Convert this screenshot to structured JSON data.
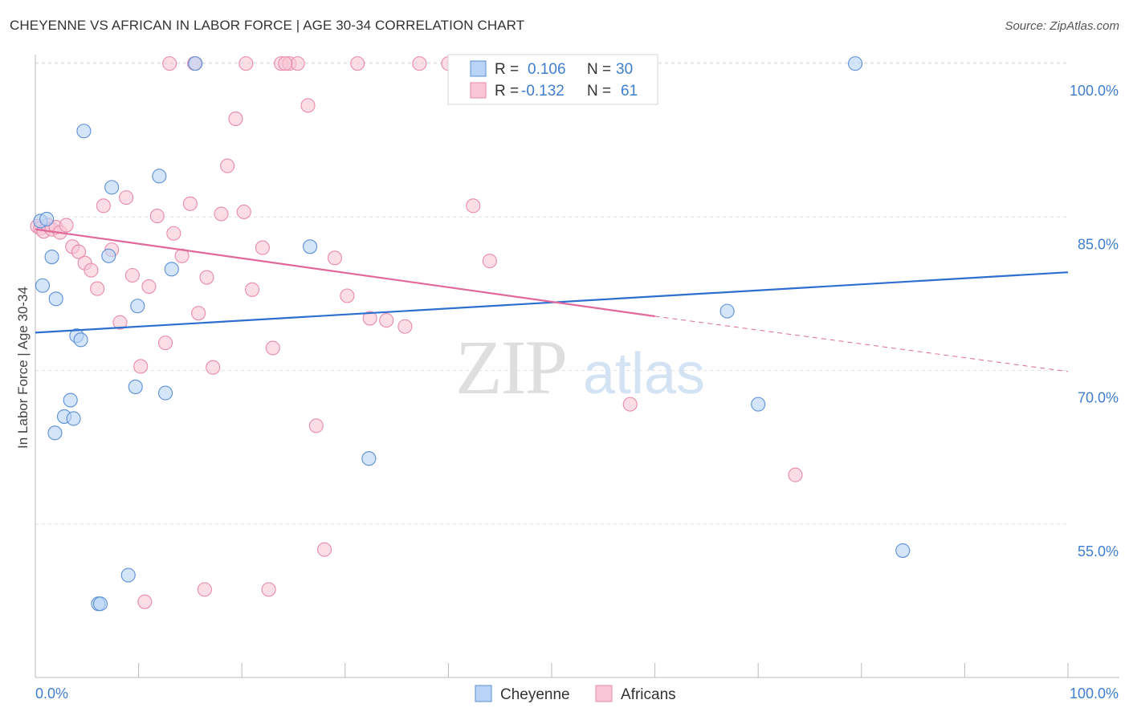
{
  "title": "CHEYENNE VS AFRICAN IN LABOR FORCE | AGE 30-34 CORRELATION CHART",
  "source": "Source: ZipAtlas.com",
  "colors": {
    "cheyenne_fill": "#b8d3f5",
    "cheyenne_stroke": "#5b8fd6",
    "cheyenne_line": "#2d6fcf",
    "africans_fill": "#f8c6d6",
    "africans_stroke": "#e88aaa",
    "africans_line": "#e0699a",
    "axis_label": "#3f7ecf",
    "grid": "#e3e3e3"
  },
  "watermark": {
    "zip": "ZIP",
    "atlas": "atlas"
  },
  "legend": {
    "rows": [
      {
        "r_label": "R =",
        "r_value": "0.106",
        "n_label": "N =",
        "n_value": "30",
        "series": "cheyenne"
      },
      {
        "r_label": "R =",
        "r_value": "-0.132",
        "n_label": "N =",
        "n_value": "61",
        "series": "africans"
      }
    ]
  },
  "bottom_legend": [
    "Cheyenne",
    "Africans"
  ],
  "chart_data": {
    "type": "scatter",
    "title": "CHEYENNE VS AFRICAN IN LABOR FORCE | AGE 30-34 CORRELATION CHART",
    "xlabel": "",
    "ylabel": "In Labor Force | Age 30-34",
    "xlim": [
      0,
      100
    ],
    "ylim": [
      40,
      101.5
    ],
    "x_tick_labels": [
      "0.0%",
      "100.0%"
    ],
    "y_ticks": [
      55,
      70,
      85,
      100
    ],
    "y_tick_labels": [
      "55.0%",
      "70.0%",
      "85.0%",
      "100.0%"
    ],
    "grid": true,
    "legend_position": "top-center",
    "series": [
      {
        "name": "Cheyenne",
        "x": [
          0.5,
          1.1,
          0.7,
          1.6,
          2.0,
          4.0,
          4.4,
          4.7,
          3.4,
          2.8,
          3.7,
          1.9,
          7.4,
          12.0,
          7.1,
          13.2,
          15.5,
          9.9,
          9.7,
          12.6,
          9.0,
          6.1,
          6.3,
          26.6,
          32.3,
          67.0,
          70.0,
          59.2,
          79.4,
          84.0
        ],
        "y": [
          84.6,
          84.8,
          78.3,
          81.1,
          77.0,
          73.4,
          73.0,
          93.4,
          67.1,
          65.5,
          65.3,
          63.9,
          87.9,
          89.0,
          81.2,
          79.9,
          100.0,
          76.3,
          68.4,
          67.8,
          50.0,
          47.2,
          47.2,
          82.1,
          61.4,
          75.8,
          66.7,
          100.0,
          100.0,
          52.4
        ]
      },
      {
        "name": "Africans",
        "x": [
          0.2,
          0.5,
          0.8,
          1.2,
          1.6,
          2.0,
          2.4,
          3.0,
          3.6,
          4.2,
          4.8,
          5.4,
          6.0,
          6.6,
          7.4,
          8.2,
          8.8,
          9.4,
          10.2,
          11.0,
          11.8,
          12.6,
          13.4,
          14.2,
          15.0,
          15.8,
          16.6,
          17.2,
          18.0,
          18.6,
          19.4,
          20.2,
          21.0,
          22.0,
          23.0,
          23.8,
          24.6,
          25.4,
          26.4,
          27.2,
          28.0,
          29.0,
          30.2,
          31.2,
          32.4,
          34.0,
          35.8,
          37.2,
          40.0,
          42.4,
          44.0,
          52.4,
          57.6,
          73.6,
          16.4,
          22.6,
          20.4,
          24.2,
          10.6,
          13.0,
          15.4
        ],
        "y": [
          84.1,
          83.9,
          83.6,
          84.2,
          83.8,
          84.0,
          83.5,
          84.2,
          82.1,
          81.6,
          80.5,
          79.8,
          78.0,
          86.1,
          81.8,
          74.7,
          86.9,
          79.3,
          70.4,
          78.2,
          85.1,
          72.7,
          83.4,
          81.2,
          86.3,
          75.6,
          79.1,
          70.3,
          85.3,
          90.0,
          94.6,
          85.5,
          77.9,
          82.0,
          72.2,
          100.0,
          100.0,
          100.0,
          95.9,
          64.6,
          52.5,
          81.0,
          77.3,
          100.0,
          75.1,
          74.9,
          74.3,
          100.0,
          100.0,
          86.1,
          80.7,
          100.0,
          66.7,
          59.8,
          48.6,
          48.6,
          100.0,
          100.0,
          47.4,
          100.0,
          100.0
        ]
      }
    ],
    "trendlines": [
      {
        "series": "Cheyenne",
        "x": [
          0,
          100
        ],
        "y": [
          73.7,
          79.6
        ],
        "style": "solid"
      },
      {
        "series": "Africans",
        "x": [
          0,
          60
        ],
        "y": [
          83.8,
          75.3
        ],
        "style": "solid"
      },
      {
        "series": "Africans",
        "x": [
          60,
          100
        ],
        "y": [
          75.3,
          69.9
        ],
        "style": "dashed"
      }
    ]
  }
}
